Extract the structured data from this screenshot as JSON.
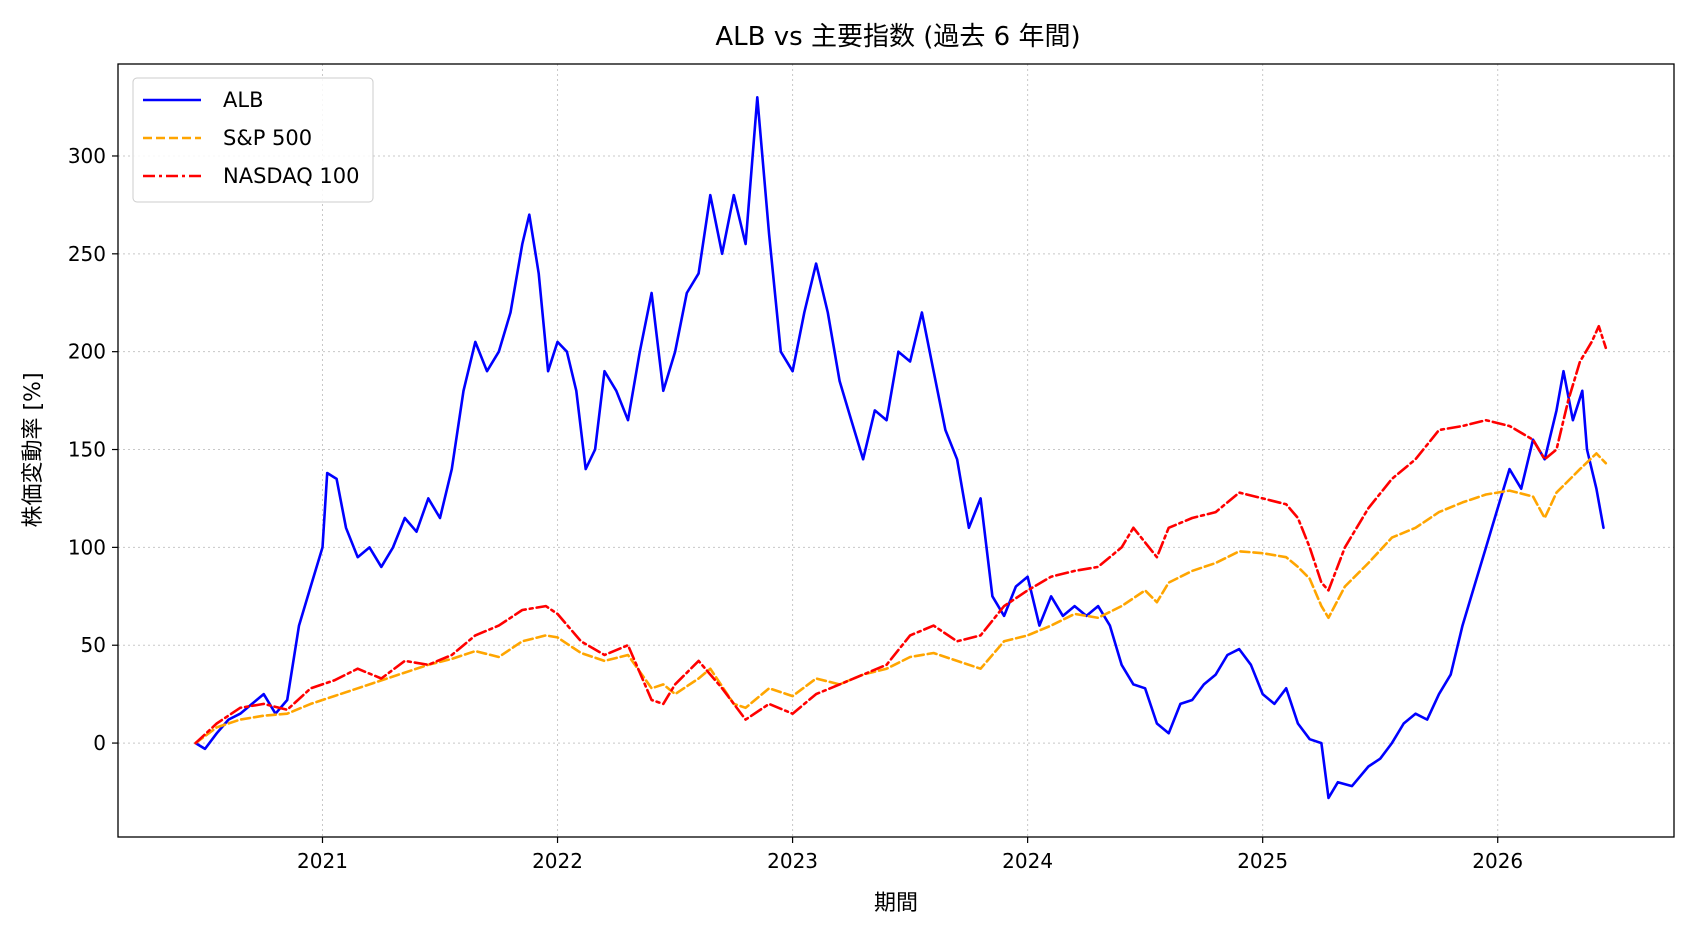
{
  "chart_data": {
    "type": "line",
    "title": "ALB vs 主要指数 (過去 6 年間)",
    "xlabel": "期間",
    "ylabel": "株価変動率 [%]",
    "x_ticks": [
      "2021",
      "2022",
      "2023",
      "2024",
      "2025",
      "2026"
    ],
    "x_tick_values": [
      2021.0,
      2022.0,
      2023.0,
      2024.0,
      2025.0,
      2026.0
    ],
    "y_ticks": [
      0,
      50,
      100,
      150,
      200,
      250,
      300
    ],
    "xlim": [
      2020.13,
      2026.75
    ],
    "ylim": [
      -48,
      347
    ],
    "grid": true,
    "legend_position": "upper-left",
    "series": [
      {
        "name": "ALB",
        "color": "#0000ff",
        "style": "solid",
        "points": [
          [
            2020.46,
            0
          ],
          [
            2020.5,
            -3
          ],
          [
            2020.55,
            5
          ],
          [
            2020.6,
            12
          ],
          [
            2020.65,
            15
          ],
          [
            2020.7,
            20
          ],
          [
            2020.75,
            25
          ],
          [
            2020.8,
            15
          ],
          [
            2020.85,
            22
          ],
          [
            2020.9,
            60
          ],
          [
            2020.95,
            80
          ],
          [
            2021.0,
            100
          ],
          [
            2021.02,
            138
          ],
          [
            2021.06,
            135
          ],
          [
            2021.1,
            110
          ],
          [
            2021.15,
            95
          ],
          [
            2021.2,
            100
          ],
          [
            2021.25,
            90
          ],
          [
            2021.3,
            100
          ],
          [
            2021.35,
            115
          ],
          [
            2021.4,
            108
          ],
          [
            2021.45,
            125
          ],
          [
            2021.5,
            115
          ],
          [
            2021.55,
            140
          ],
          [
            2021.6,
            180
          ],
          [
            2021.65,
            205
          ],
          [
            2021.7,
            190
          ],
          [
            2021.75,
            200
          ],
          [
            2021.8,
            220
          ],
          [
            2021.85,
            255
          ],
          [
            2021.88,
            270
          ],
          [
            2021.92,
            240
          ],
          [
            2021.96,
            190
          ],
          [
            2022.0,
            205
          ],
          [
            2022.04,
            200
          ],
          [
            2022.08,
            180
          ],
          [
            2022.12,
            140
          ],
          [
            2022.16,
            150
          ],
          [
            2022.2,
            190
          ],
          [
            2022.25,
            180
          ],
          [
            2022.3,
            165
          ],
          [
            2022.35,
            200
          ],
          [
            2022.4,
            230
          ],
          [
            2022.45,
            180
          ],
          [
            2022.5,
            200
          ],
          [
            2022.55,
            230
          ],
          [
            2022.6,
            240
          ],
          [
            2022.65,
            280
          ],
          [
            2022.7,
            250
          ],
          [
            2022.75,
            280
          ],
          [
            2022.8,
            255
          ],
          [
            2022.85,
            330
          ],
          [
            2022.9,
            260
          ],
          [
            2022.95,
            200
          ],
          [
            2023.0,
            190
          ],
          [
            2023.05,
            220
          ],
          [
            2023.1,
            245
          ],
          [
            2023.15,
            220
          ],
          [
            2023.2,
            185
          ],
          [
            2023.25,
            165
          ],
          [
            2023.3,
            145
          ],
          [
            2023.35,
            170
          ],
          [
            2023.4,
            165
          ],
          [
            2023.45,
            200
          ],
          [
            2023.5,
            195
          ],
          [
            2023.55,
            220
          ],
          [
            2023.6,
            190
          ],
          [
            2023.65,
            160
          ],
          [
            2023.7,
            145
          ],
          [
            2023.75,
            110
          ],
          [
            2023.8,
            125
          ],
          [
            2023.85,
            75
          ],
          [
            2023.9,
            65
          ],
          [
            2023.95,
            80
          ],
          [
            2024.0,
            85
          ],
          [
            2024.05,
            60
          ],
          [
            2024.1,
            75
          ],
          [
            2024.15,
            65
          ],
          [
            2024.2,
            70
          ],
          [
            2024.25,
            65
          ],
          [
            2024.3,
            70
          ],
          [
            2024.35,
            60
          ],
          [
            2024.4,
            40
          ],
          [
            2024.45,
            30
          ],
          [
            2024.5,
            28
          ],
          [
            2024.55,
            10
          ],
          [
            2024.6,
            5
          ],
          [
            2024.65,
            20
          ],
          [
            2024.7,
            22
          ],
          [
            2024.75,
            30
          ],
          [
            2024.8,
            35
          ],
          [
            2024.85,
            45
          ],
          [
            2024.9,
            48
          ],
          [
            2024.95,
            40
          ],
          [
            2025.0,
            25
          ],
          [
            2025.05,
            20
          ],
          [
            2025.1,
            28
          ],
          [
            2025.15,
            10
          ],
          [
            2025.2,
            2
          ],
          [
            2025.25,
            0
          ],
          [
            2025.28,
            -28
          ],
          [
            2025.32,
            -20
          ],
          [
            2025.38,
            -22
          ],
          [
            2025.45,
            -12
          ],
          [
            2025.5,
            -8
          ],
          [
            2025.55,
            0
          ],
          [
            2025.6,
            10
          ],
          [
            2025.65,
            15
          ],
          [
            2025.7,
            12
          ],
          [
            2025.75,
            25
          ],
          [
            2025.8,
            35
          ],
          [
            2025.85,
            60
          ],
          [
            2025.9,
            80
          ],
          [
            2025.95,
            100
          ],
          [
            2026.0,
            120
          ],
          [
            2026.05,
            140
          ],
          [
            2026.1,
            130
          ],
          [
            2026.15,
            155
          ],
          [
            2026.2,
            145
          ],
          [
            2026.25,
            170
          ],
          [
            2026.28,
            190
          ],
          [
            2026.32,
            165
          ],
          [
            2026.36,
            180
          ],
          [
            2026.38,
            150
          ],
          [
            2026.42,
            130
          ],
          [
            2026.45,
            110
          ]
        ]
      },
      {
        "name": "S&P 500",
        "color": "#ffa500",
        "style": "dashed",
        "points": [
          [
            2020.46,
            0
          ],
          [
            2020.55,
            8
          ],
          [
            2020.65,
            12
          ],
          [
            2020.75,
            14
          ],
          [
            2020.85,
            15
          ],
          [
            2020.95,
            20
          ],
          [
            2021.05,
            24
          ],
          [
            2021.15,
            28
          ],
          [
            2021.25,
            32
          ],
          [
            2021.35,
            36
          ],
          [
            2021.45,
            40
          ],
          [
            2021.55,
            43
          ],
          [
            2021.65,
            47
          ],
          [
            2021.75,
            44
          ],
          [
            2021.85,
            52
          ],
          [
            2021.95,
            55
          ],
          [
            2022.0,
            54
          ],
          [
            2022.1,
            46
          ],
          [
            2022.2,
            42
          ],
          [
            2022.3,
            45
          ],
          [
            2022.4,
            28
          ],
          [
            2022.45,
            30
          ],
          [
            2022.5,
            25
          ],
          [
            2022.6,
            33
          ],
          [
            2022.65,
            38
          ],
          [
            2022.75,
            20
          ],
          [
            2022.8,
            18
          ],
          [
            2022.9,
            28
          ],
          [
            2023.0,
            24
          ],
          [
            2023.1,
            33
          ],
          [
            2023.2,
            30
          ],
          [
            2023.3,
            35
          ],
          [
            2023.4,
            38
          ],
          [
            2023.5,
            44
          ],
          [
            2023.6,
            46
          ],
          [
            2023.7,
            42
          ],
          [
            2023.8,
            38
          ],
          [
            2023.9,
            52
          ],
          [
            2024.0,
            55
          ],
          [
            2024.1,
            60
          ],
          [
            2024.2,
            66
          ],
          [
            2024.3,
            64
          ],
          [
            2024.4,
            70
          ],
          [
            2024.5,
            78
          ],
          [
            2024.55,
            72
          ],
          [
            2024.6,
            82
          ],
          [
            2024.7,
            88
          ],
          [
            2024.8,
            92
          ],
          [
            2024.9,
            98
          ],
          [
            2025.0,
            97
          ],
          [
            2025.1,
            95
          ],
          [
            2025.15,
            90
          ],
          [
            2025.2,
            84
          ],
          [
            2025.25,
            70
          ],
          [
            2025.28,
            64
          ],
          [
            2025.35,
            80
          ],
          [
            2025.45,
            92
          ],
          [
            2025.55,
            105
          ],
          [
            2025.65,
            110
          ],
          [
            2025.75,
            118
          ],
          [
            2025.85,
            123
          ],
          [
            2025.95,
            127
          ],
          [
            2026.05,
            129
          ],
          [
            2026.15,
            126
          ],
          [
            2026.2,
            115
          ],
          [
            2026.25,
            128
          ],
          [
            2026.35,
            140
          ],
          [
            2026.42,
            148
          ],
          [
            2026.46,
            143
          ]
        ]
      },
      {
        "name": "NASDAQ 100",
        "color": "#ff0000",
        "style": "dashdot",
        "points": [
          [
            2020.46,
            0
          ],
          [
            2020.55,
            10
          ],
          [
            2020.65,
            18
          ],
          [
            2020.75,
            20
          ],
          [
            2020.85,
            17
          ],
          [
            2020.95,
            28
          ],
          [
            2021.05,
            32
          ],
          [
            2021.15,
            38
          ],
          [
            2021.25,
            33
          ],
          [
            2021.35,
            42
          ],
          [
            2021.45,
            40
          ],
          [
            2021.55,
            45
          ],
          [
            2021.65,
            55
          ],
          [
            2021.75,
            60
          ],
          [
            2021.85,
            68
          ],
          [
            2021.95,
            70
          ],
          [
            2022.0,
            66
          ],
          [
            2022.1,
            52
          ],
          [
            2022.2,
            45
          ],
          [
            2022.3,
            50
          ],
          [
            2022.4,
            22
          ],
          [
            2022.45,
            20
          ],
          [
            2022.5,
            30
          ],
          [
            2022.6,
            42
          ],
          [
            2022.7,
            28
          ],
          [
            2022.8,
            12
          ],
          [
            2022.9,
            20
          ],
          [
            2023.0,
            15
          ],
          [
            2023.1,
            25
          ],
          [
            2023.2,
            30
          ],
          [
            2023.3,
            35
          ],
          [
            2023.4,
            40
          ],
          [
            2023.5,
            55
          ],
          [
            2023.6,
            60
          ],
          [
            2023.7,
            52
          ],
          [
            2023.8,
            55
          ],
          [
            2023.9,
            70
          ],
          [
            2024.0,
            78
          ],
          [
            2024.1,
            85
          ],
          [
            2024.2,
            88
          ],
          [
            2024.3,
            90
          ],
          [
            2024.4,
            100
          ],
          [
            2024.45,
            110
          ],
          [
            2024.55,
            95
          ],
          [
            2024.6,
            110
          ],
          [
            2024.7,
            115
          ],
          [
            2024.8,
            118
          ],
          [
            2024.9,
            128
          ],
          [
            2025.0,
            125
          ],
          [
            2025.1,
            122
          ],
          [
            2025.15,
            115
          ],
          [
            2025.2,
            100
          ],
          [
            2025.25,
            82
          ],
          [
            2025.28,
            78
          ],
          [
            2025.35,
            100
          ],
          [
            2025.45,
            120
          ],
          [
            2025.55,
            135
          ],
          [
            2025.65,
            145
          ],
          [
            2025.75,
            160
          ],
          [
            2025.85,
            162
          ],
          [
            2025.95,
            165
          ],
          [
            2026.05,
            162
          ],
          [
            2026.15,
            155
          ],
          [
            2026.2,
            145
          ],
          [
            2026.25,
            150
          ],
          [
            2026.3,
            175
          ],
          [
            2026.35,
            195
          ],
          [
            2026.4,
            205
          ],
          [
            2026.43,
            213
          ],
          [
            2026.46,
            202
          ]
        ]
      }
    ]
  }
}
